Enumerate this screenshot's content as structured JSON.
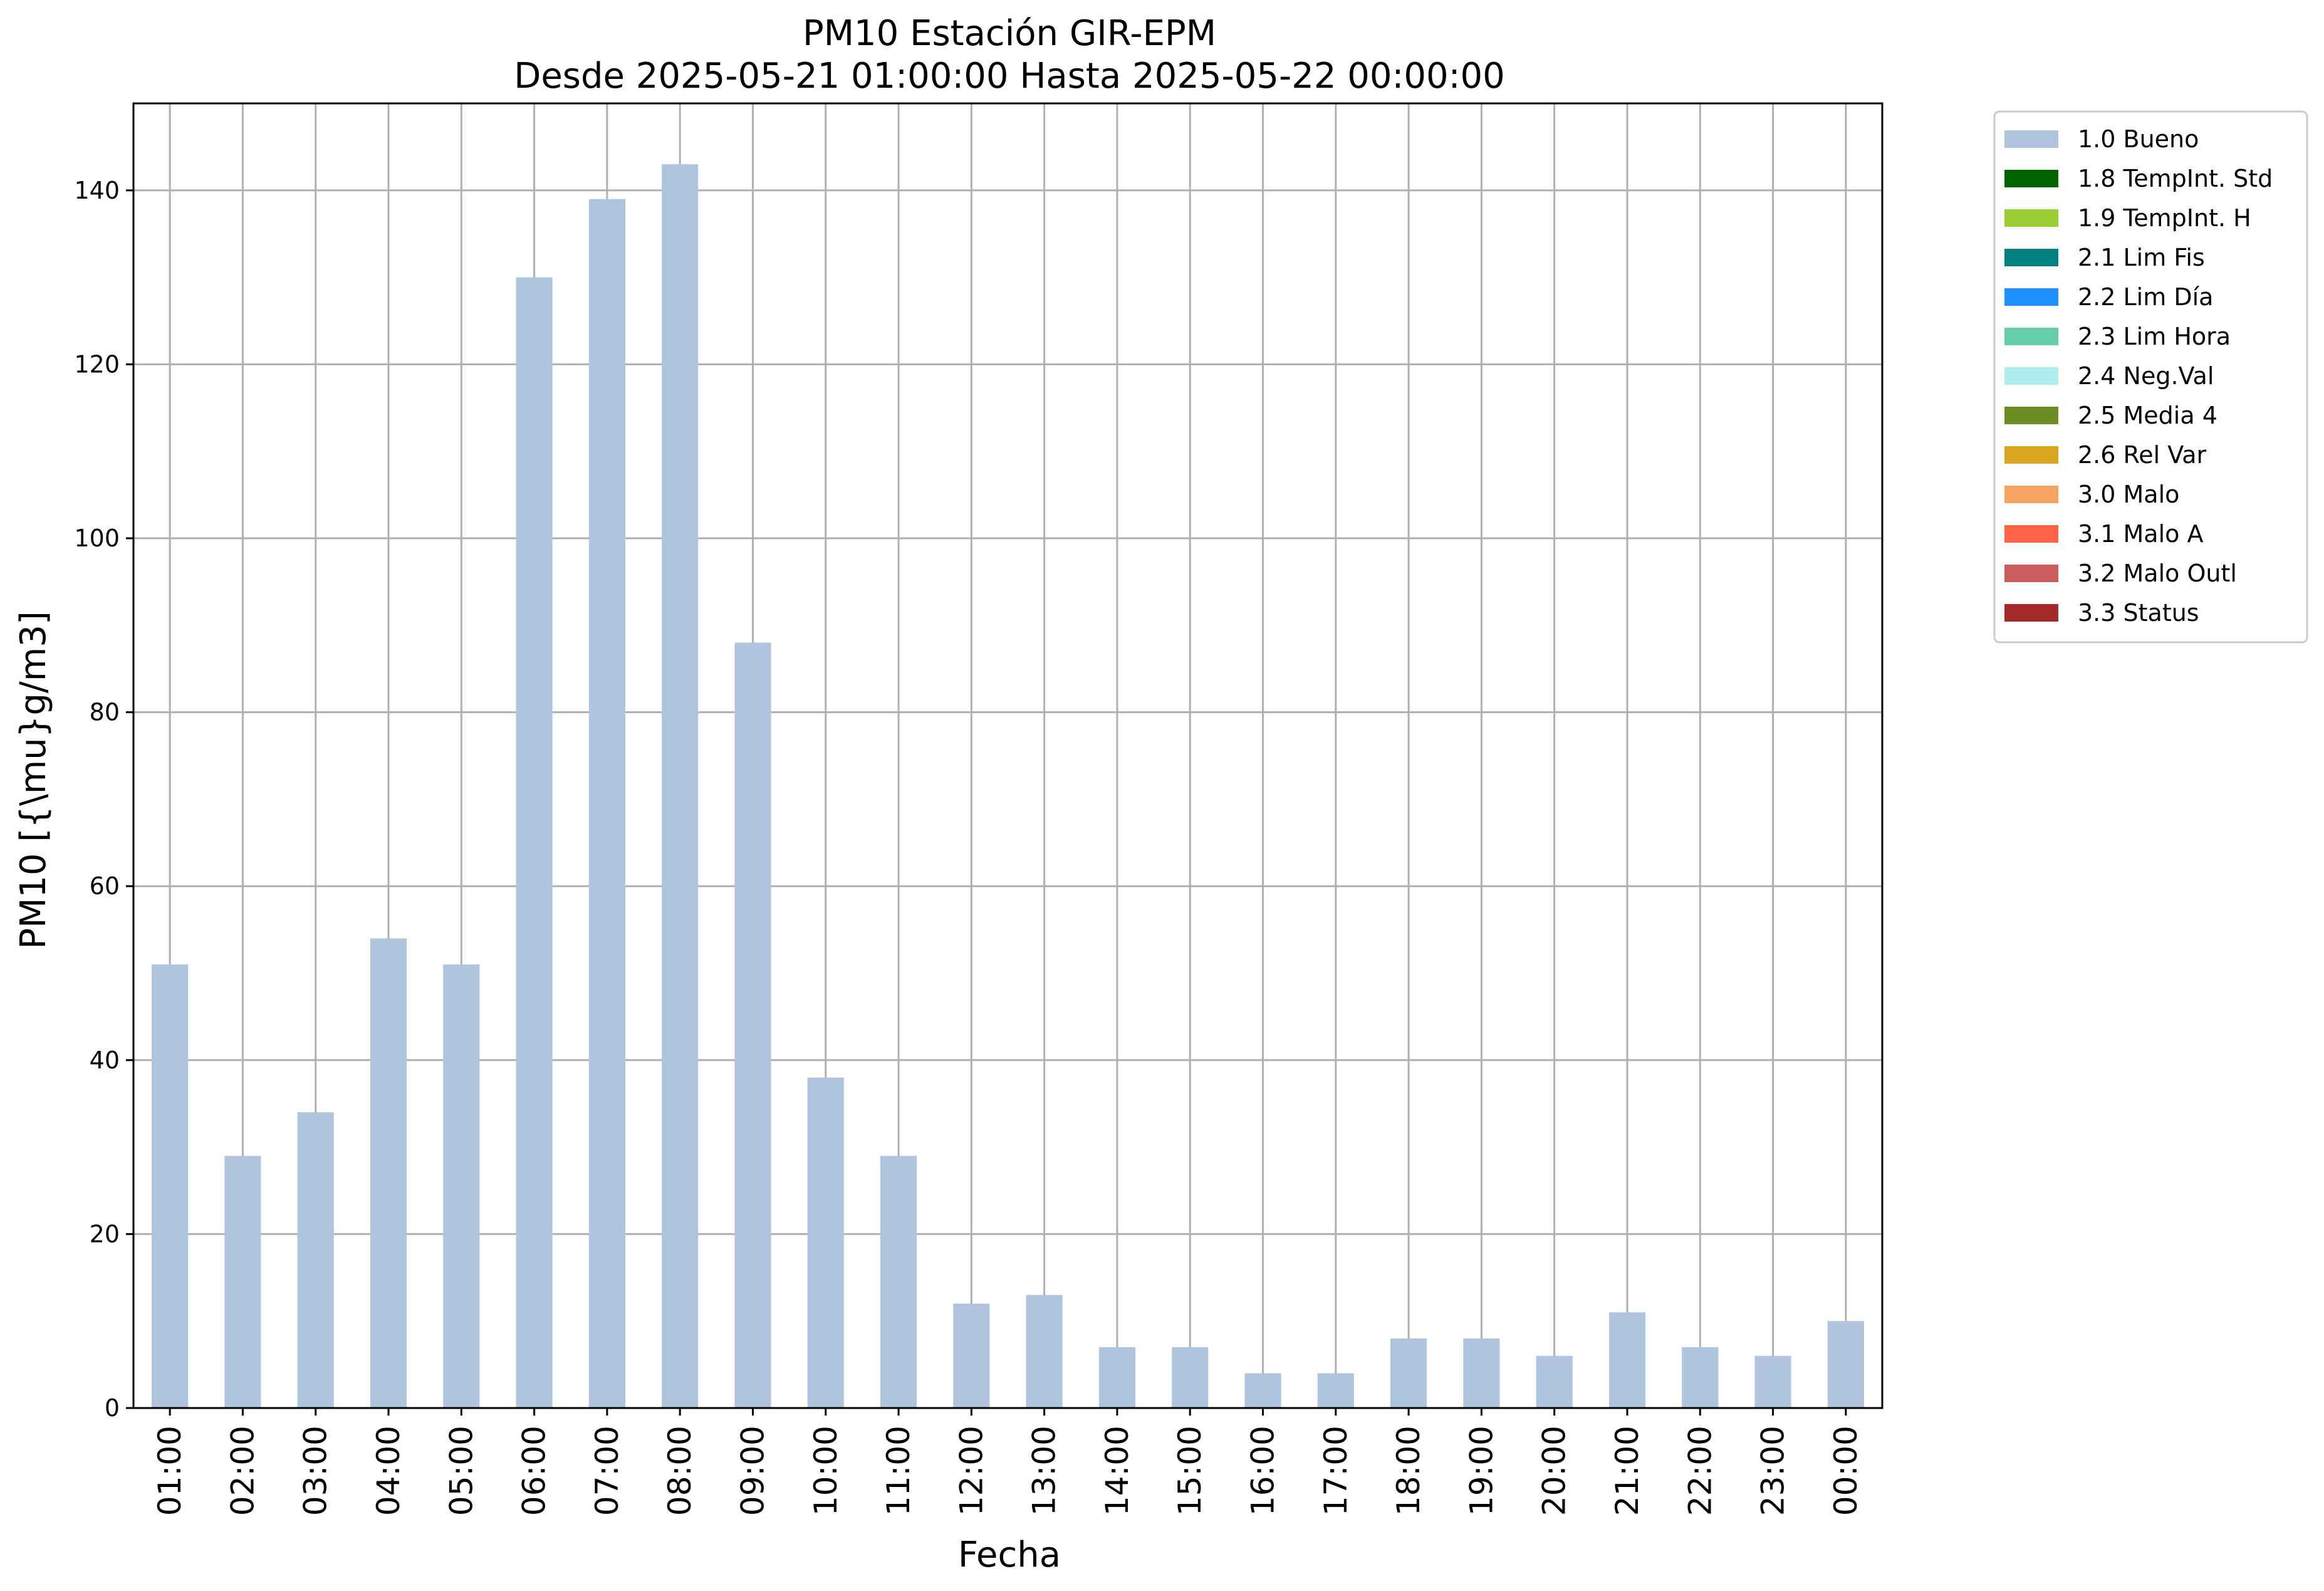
{
  "chart_data": {
    "type": "bar",
    "title": "PM10 Estación GIR-EPM",
    "subtitle": "Desde 2025-05-21 01:00:00 Hasta 2025-05-22 00:00:00",
    "xlabel": "Fecha",
    "ylabel": "PM10 [{\\mu}g/m3]",
    "ylim": [
      0,
      150
    ],
    "yticks": [
      0,
      20,
      40,
      60,
      80,
      100,
      120,
      140
    ],
    "grid": true,
    "legend_placement": "outside-top-right",
    "categories": [
      "01:00",
      "02:00",
      "03:00",
      "04:00",
      "05:00",
      "06:00",
      "07:00",
      "08:00",
      "09:00",
      "10:00",
      "11:00",
      "12:00",
      "13:00",
      "14:00",
      "15:00",
      "16:00",
      "17:00",
      "18:00",
      "19:00",
      "20:00",
      "21:00",
      "22:00",
      "23:00",
      "00:00"
    ],
    "series": [
      {
        "name": "1.0 Bueno",
        "color": "#b0c4de",
        "values": [
          51,
          29,
          34,
          54,
          51,
          130,
          139,
          143,
          88,
          38,
          29,
          12,
          13,
          7,
          7,
          4,
          4,
          8,
          8,
          6,
          11,
          7,
          6,
          10
        ]
      }
    ],
    "legend": [
      {
        "label": "1.0 Bueno",
        "color": "#b0c4de"
      },
      {
        "label": "1.8 TempInt. Std",
        "color": "#006400"
      },
      {
        "label": "1.9 TempInt. H",
        "color": "#9acd32"
      },
      {
        "label": "2.1 Lim Fis",
        "color": "#008080"
      },
      {
        "label": "2.2 Lim Día",
        "color": "#1e90ff"
      },
      {
        "label": "2.3 Lim Hora",
        "color": "#66cdaa"
      },
      {
        "label": "2.4 Neg.Val",
        "color": "#afeeee"
      },
      {
        "label": "2.5 Media 4",
        "color": "#6b8e23"
      },
      {
        "label": "2.6 Rel Var",
        "color": "#daa520"
      },
      {
        "label": "3.0 Malo",
        "color": "#f4a460"
      },
      {
        "label": "3.1 Malo A",
        "color": "#ff6347"
      },
      {
        "label": "3.2 Malo Outl",
        "color": "#cd5c5c"
      },
      {
        "label": "3.3 Status",
        "color": "#a52a2a"
      }
    ]
  }
}
